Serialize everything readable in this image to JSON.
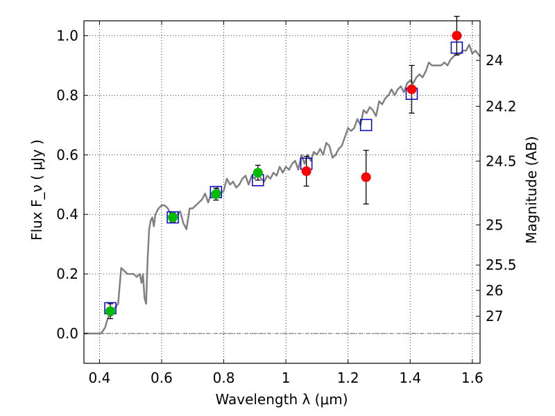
{
  "chart_data": {
    "type": "scatter",
    "xlabel": "Wavelength  λ (μm)",
    "ylabel": "Flux  F_ν  ( μJy )",
    "ylabel_right": "Magnitude (AB)",
    "xlim": [
      0.35,
      1.625
    ],
    "ylim": [
      -0.1,
      1.05
    ],
    "x_ticks": [
      0.4,
      0.6,
      0.8,
      1.0,
      1.2,
      1.4,
      1.6
    ],
    "x_tick_labels": [
      "0.4",
      "0.6",
      "0.8",
      "1",
      "1.2",
      "1.4",
      "1.6"
    ],
    "y_ticks": [
      0.0,
      0.2,
      0.4,
      0.6,
      0.8,
      1.0
    ],
    "y_tick_labels": [
      "0.0",
      "0.2",
      "0.4",
      "0.6",
      "0.8",
      "1.0"
    ],
    "right_ticks": [
      {
        "label": "24",
        "flux": 0.917
      },
      {
        "label": "24.2",
        "flux": 0.763
      },
      {
        "label": "24.5",
        "flux": 0.579
      },
      {
        "label": "25",
        "flux": 0.365
      },
      {
        "label": "25.5",
        "flux": 0.23
      },
      {
        "label": "26",
        "flux": 0.145
      },
      {
        "label": "27",
        "flux": 0.058
      }
    ],
    "grid": true,
    "colors": {
      "model": "#808080",
      "green_points": "#00bb00",
      "red_points": "#ff0000",
      "model_boxes": "#0000cc",
      "zero_line": "#555555"
    },
    "series": [
      {
        "kind": "line",
        "x": [
          0.35,
          0.405,
          0.418,
          0.425,
          0.43,
          0.44,
          0.445,
          0.46,
          0.47,
          0.48,
          0.49,
          0.5,
          0.51,
          0.52,
          0.53,
          0.535,
          0.54,
          0.545,
          0.55,
          0.555,
          0.56,
          0.565,
          0.57,
          0.575,
          0.58,
          0.59,
          0.6,
          0.61,
          0.62,
          0.63,
          0.64,
          0.65,
          0.66,
          0.67,
          0.68,
          0.69,
          0.7,
          0.71,
          0.72,
          0.73,
          0.74,
          0.75,
          0.76,
          0.77,
          0.78,
          0.79,
          0.8,
          0.81,
          0.82,
          0.83,
          0.84,
          0.85,
          0.86,
          0.87,
          0.88,
          0.89,
          0.9,
          0.91,
          0.92,
          0.93,
          0.94,
          0.95,
          0.96,
          0.97,
          0.98,
          0.99,
          1.0,
          1.01,
          1.02,
          1.03,
          1.04,
          1.05,
          1.06,
          1.07,
          1.08,
          1.09,
          1.1,
          1.11,
          1.12,
          1.13,
          1.14,
          1.15,
          1.16,
          1.17,
          1.18,
          1.19,
          1.2,
          1.21,
          1.22,
          1.23,
          1.24,
          1.25,
          1.26,
          1.27,
          1.28,
          1.29,
          1.3,
          1.31,
          1.32,
          1.33,
          1.34,
          1.35,
          1.36,
          1.37,
          1.38,
          1.39,
          1.4,
          1.41,
          1.42,
          1.43,
          1.44,
          1.45,
          1.46,
          1.47,
          1.48,
          1.49,
          1.5,
          1.51,
          1.52,
          1.53,
          1.54,
          1.55,
          1.56,
          1.57,
          1.58,
          1.59,
          1.6,
          1.61,
          1.625
        ],
        "y": [
          0.0,
          0.0,
          0.02,
          0.045,
          0.06,
          0.06,
          0.08,
          0.1,
          0.22,
          0.21,
          0.2,
          0.2,
          0.2,
          0.19,
          0.2,
          0.17,
          0.2,
          0.12,
          0.1,
          0.25,
          0.35,
          0.38,
          0.39,
          0.36,
          0.4,
          0.42,
          0.43,
          0.43,
          0.42,
          0.4,
          0.38,
          0.4,
          0.41,
          0.37,
          0.35,
          0.42,
          0.42,
          0.43,
          0.44,
          0.45,
          0.47,
          0.44,
          0.47,
          0.48,
          0.49,
          0.47,
          0.48,
          0.52,
          0.5,
          0.51,
          0.49,
          0.5,
          0.52,
          0.53,
          0.5,
          0.53,
          0.52,
          0.54,
          0.52,
          0.51,
          0.53,
          0.52,
          0.54,
          0.53,
          0.56,
          0.54,
          0.56,
          0.55,
          0.57,
          0.58,
          0.55,
          0.6,
          0.57,
          0.6,
          0.58,
          0.61,
          0.6,
          0.62,
          0.6,
          0.64,
          0.63,
          0.59,
          0.6,
          0.62,
          0.63,
          0.66,
          0.69,
          0.68,
          0.69,
          0.72,
          0.7,
          0.75,
          0.74,
          0.76,
          0.75,
          0.73,
          0.78,
          0.77,
          0.79,
          0.8,
          0.82,
          0.8,
          0.82,
          0.83,
          0.81,
          0.84,
          0.85,
          0.84,
          0.86,
          0.87,
          0.86,
          0.88,
          0.91,
          0.9,
          0.9,
          0.9,
          0.9,
          0.91,
          0.9,
          0.92,
          0.93,
          0.94,
          0.94,
          0.95,
          0.95,
          0.97,
          0.94,
          0.95,
          0.93
        ]
      },
      {
        "kind": "model_boxes",
        "x": [
          0.435,
          0.636,
          0.775,
          0.91,
          1.066,
          1.258,
          1.405,
          1.55
        ],
        "y": [
          0.085,
          0.39,
          0.475,
          0.515,
          0.57,
          0.7,
          0.805,
          0.96
        ]
      },
      {
        "kind": "points_green",
        "x": [
          0.435,
          0.636,
          0.775,
          0.91
        ],
        "y": [
          0.075,
          0.39,
          0.468,
          0.54
        ],
        "err": [
          0.025,
          0.015,
          0.02,
          0.025
        ]
      },
      {
        "kind": "points_red",
        "x": [
          1.066,
          1.258,
          1.405,
          1.55
        ],
        "y": [
          0.545,
          0.525,
          0.82,
          1.0
        ],
        "err": [
          0.05,
          0.09,
          0.08,
          0.065
        ]
      }
    ]
  }
}
